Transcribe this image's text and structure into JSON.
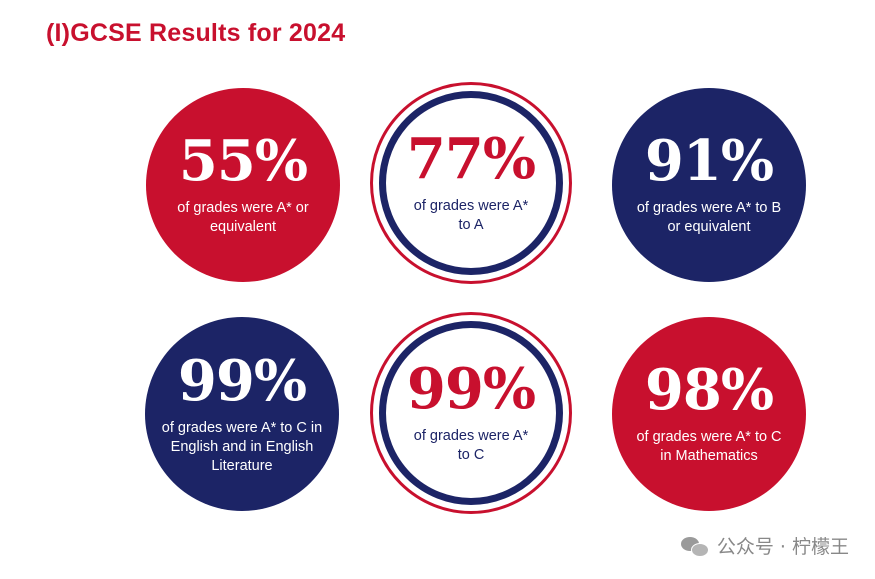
{
  "title": "(I)GCSE Results for 2024",
  "stats": [
    {
      "value": "55%",
      "description": "of grades were A* or equivalent"
    },
    {
      "value": "77%",
      "description": "of grades were A* to A"
    },
    {
      "value": "91%",
      "description": "of grades were A* to B or equivalent"
    },
    {
      "value": "99%",
      "description": "of grades were A* to C in English and in English Literature"
    },
    {
      "value": "99%",
      "description": "of grades were A* to C"
    },
    {
      "value": "98%",
      "description": "of grades were A* to C in Mathematics"
    }
  ],
  "watermark": {
    "text": "公众号 · 柠檬王",
    "icon": "wechat-icon"
  },
  "colors": {
    "red": "#c8102e",
    "navy": "#1c2466",
    "white": "#ffffff"
  }
}
